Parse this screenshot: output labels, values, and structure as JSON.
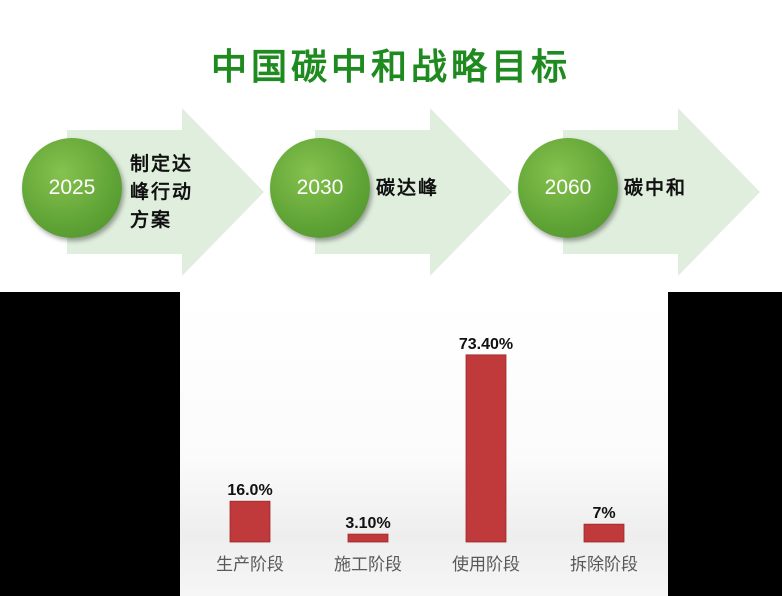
{
  "title": "中国碳中和战略目标",
  "timeline": [
    {
      "year": "2025",
      "label_lines": [
        "制定达",
        "峰行动",
        "方案"
      ]
    },
    {
      "year": "2030",
      "label_lines": [
        "碳达峰"
      ]
    },
    {
      "year": "2060",
      "label_lines": [
        "碳中和"
      ]
    }
  ],
  "colors": {
    "title_green": "#1f8a1f",
    "circle_green": "#5fa336",
    "arrow_fill": "#dfeedd",
    "bar_red": "#c0393b"
  },
  "chart_data": {
    "type": "bar",
    "categories": [
      "生产阶段",
      "施工阶段",
      "使用阶段",
      "拆除阶段"
    ],
    "values": [
      16.0,
      3.1,
      73.4,
      7
    ],
    "data_labels": [
      "16.0%",
      "3.10%",
      "73.40%",
      "7%"
    ],
    "title": "",
    "xlabel": "",
    "ylabel": "",
    "ylim": [
      0,
      80
    ],
    "grid": false,
    "legend": "none"
  }
}
